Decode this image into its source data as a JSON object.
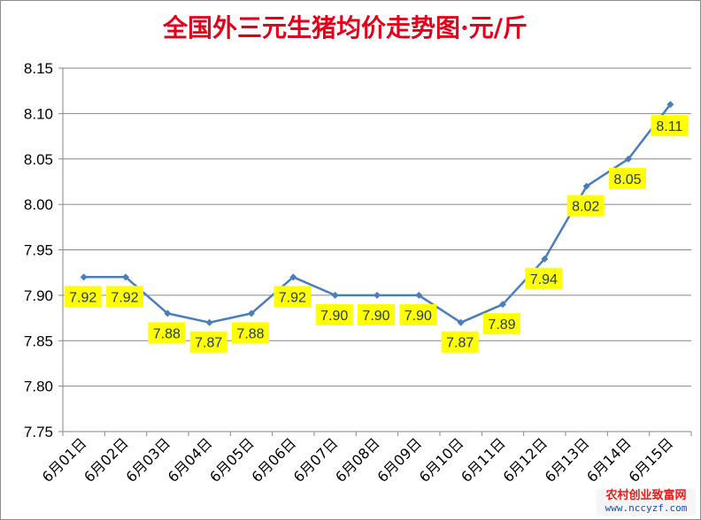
{
  "chart_data": {
    "type": "line",
    "title": "全国外三元生猪均价走势图·元/斤",
    "xlabel": "",
    "ylabel": "",
    "categories": [
      "6月01日",
      "6月02日",
      "6月03日",
      "6月04日",
      "6月05日",
      "6月06日",
      "6月07日",
      "6月08日",
      "6月09日",
      "6月10日",
      "6月11日",
      "6月12日",
      "6月13日",
      "6月14日",
      "6月15日"
    ],
    "series": [
      {
        "values": [
          7.92,
          7.92,
          7.88,
          7.87,
          7.88,
          7.92,
          7.9,
          7.9,
          7.9,
          7.87,
          7.89,
          7.94,
          8.02,
          8.05,
          8.11
        ]
      }
    ],
    "data_labels": [
      "7.92",
      "7.92",
      "7.88",
      "7.87",
      "7.88",
      "7.92",
      "7.90",
      "7.90",
      "7.90",
      "7.87",
      "7.89",
      "7.94",
      "8.02",
      "8.05",
      "8.11"
    ],
    "y_ticks": [
      "7.75",
      "7.80",
      "7.85",
      "7.90",
      "7.95",
      "8.00",
      "8.05",
      "8.10",
      "8.15"
    ],
    "ylim": [
      7.75,
      8.15
    ],
    "grid": "horizontal",
    "legend": "none",
    "colors": {
      "line": "#4a7ebb",
      "title": "#e3001b",
      "label_bg": "#ffff00",
      "grid": "#868686"
    }
  },
  "watermark": {
    "line1": "农村创业致富网",
    "line2": "www.nccyzf.com"
  }
}
